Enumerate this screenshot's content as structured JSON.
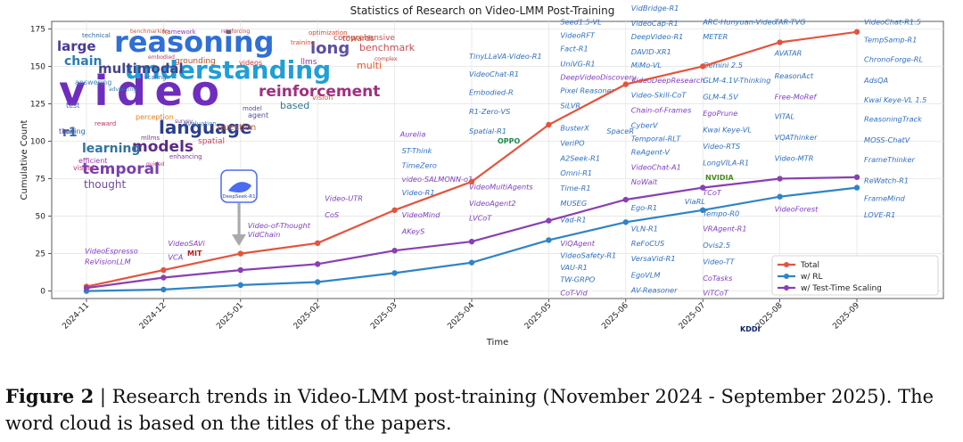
{
  "chart_data": {
    "type": "line",
    "title": "Statistics of Research on Video-LMM Post-Training",
    "xlabel": "Time",
    "ylabel": "Cumulative Count",
    "categories": [
      "2024-11",
      "2024-12",
      "2025-01",
      "2025-02",
      "2025-03",
      "2025-04",
      "2025-05",
      "2025-06",
      "2025-07",
      "2025-08",
      "2025-09"
    ],
    "ylim": [
      -5,
      180
    ],
    "yticks": [
      0,
      25,
      50,
      75,
      100,
      125,
      150,
      175
    ],
    "grid": true,
    "legend_position": "bottom-right",
    "series": [
      {
        "name": "Total",
        "color": "#e5533d",
        "values": [
          3,
          14,
          25,
          32,
          54,
          73,
          111,
          138,
          150,
          166,
          173
        ]
      },
      {
        "name": "w/ RL",
        "color": "#2f84c6",
        "values": [
          0,
          1,
          4,
          6,
          12,
          19,
          34,
          46,
          54,
          63,
          69
        ]
      },
      {
        "name": "w/ Test-Time Scaling",
        "color": "#8a3fb3",
        "values": [
          2,
          9,
          14,
          18,
          27,
          33,
          47,
          61,
          69,
          75,
          76
        ]
      }
    ],
    "annotation": "DeepSeek-R1",
    "word_cloud": [
      {
        "text": "video",
        "color": "#6f2dbd",
        "size": 46
      },
      {
        "text": "reasoning",
        "color": "#2f6fd6",
        "size": 32
      },
      {
        "text": "understanding",
        "color": "#1f9fd6",
        "size": 28
      },
      {
        "text": "language",
        "color": "#2c3e8f",
        "size": 20
      },
      {
        "text": "reinforcement",
        "color": "#a22e80",
        "size": 17
      },
      {
        "text": "models",
        "color": "#5b2a86",
        "size": 17
      },
      {
        "text": "temporal",
        "color": "#7a3fb0",
        "size": 17
      },
      {
        "text": "multimodal",
        "color": "#444488",
        "size": 15
      },
      {
        "text": "long",
        "color": "#5e4fa2",
        "size": 18
      },
      {
        "text": "large",
        "color": "#4a3a96",
        "size": 15
      },
      {
        "text": "learning",
        "color": "#3274a1",
        "size": 14
      },
      {
        "text": "chain",
        "color": "#2c7bb6",
        "size": 14
      },
      {
        "text": "thought",
        "color": "#6f4a9c",
        "size": 12
      },
      {
        "text": "benchmark",
        "color": "#c44e52",
        "size": 11
      },
      {
        "text": "comprehensive",
        "color": "#c44e52",
        "size": 9
      },
      {
        "text": "multi",
        "color": "#e55c30",
        "size": 11
      },
      {
        "text": "based",
        "color": "#2b7a8c",
        "size": 11
      },
      {
        "text": "question",
        "color": "#d06030",
        "size": 10
      },
      {
        "text": "towards",
        "color": "#c05030",
        "size": 9
      },
      {
        "text": "llms",
        "color": "#8a3fa0",
        "size": 9
      },
      {
        "text": "r1",
        "color": "#3a6fb0",
        "size": 14
      },
      {
        "text": "spatial",
        "color": "#c04060",
        "size": 9
      },
      {
        "text": "grounding",
        "color": "#b05030",
        "size": 9
      },
      {
        "text": "perception",
        "color": "#e08020",
        "size": 8
      },
      {
        "text": "efficient",
        "color": "#9a3ab0",
        "size": 8
      },
      {
        "text": "visual",
        "color": "#c0307a",
        "size": 8
      },
      {
        "text": "videos",
        "color": "#c04040",
        "size": 8
      },
      {
        "text": "agent",
        "color": "#5050a0",
        "size": 8
      },
      {
        "text": "evaluation",
        "color": "#3a8ab0",
        "size": 7
      },
      {
        "text": "answering",
        "color": "#3a8ab0",
        "size": 8
      },
      {
        "text": "tuning",
        "color": "#2a6a9a",
        "size": 8
      },
      {
        "text": "mllms",
        "color": "#7a3a90",
        "size": 7
      },
      {
        "text": "technical",
        "color": "#2a6a9a",
        "size": 7
      },
      {
        "text": "optimization",
        "color": "#d04a30",
        "size": 7
      },
      {
        "text": "training",
        "color": "#d04a30",
        "size": 7
      },
      {
        "text": "framework",
        "color": "#8a3ab0",
        "size": 7
      },
      {
        "text": "enhancing",
        "color": "#7a3a90",
        "size": 7
      },
      {
        "text": "scaling",
        "color": "#3a6ab0",
        "size": 7
      },
      {
        "text": "reward",
        "color": "#c0306a",
        "size": 7
      },
      {
        "text": "time",
        "color": "#5a3aa0",
        "size": 8
      },
      {
        "text": "test",
        "color": "#3a6ab0",
        "size": 8
      },
      {
        "text": "vision",
        "color": "#d05a30",
        "size": 8
      },
      {
        "text": "model",
        "color": "#5050a0",
        "size": 7
      },
      {
        "text": "guided",
        "color": "#b04080",
        "size": 6
      },
      {
        "text": "complex",
        "color": "#c04040",
        "size": 6
      },
      {
        "text": "survey",
        "color": "#7a3a90",
        "size": 6
      },
      {
        "text": "embodied",
        "color": "#c04060",
        "size": 6
      },
      {
        "text": "benchmarking",
        "color": "#c06030",
        "size": 6
      },
      {
        "text": "advancing",
        "color": "#3a7ab0",
        "size": 6
      },
      {
        "text": "reinforcing",
        "color": "#c04040",
        "size": 6
      }
    ],
    "paper_labels": [
      {
        "text": "VideoEspresso",
        "month": "2024-11",
        "y": 25,
        "color": "#8040c0"
      },
      {
        "text": "ReVisionLLM",
        "month": "2024-11",
        "y": 18,
        "color": "#8040c0"
      },
      {
        "text": "VideoSAVi",
        "month": "2024-12",
        "y": 30,
        "color": "#8040c0"
      },
      {
        "text": "VCA",
        "month": "2024-12",
        "y": 21,
        "color": "#8040c0"
      },
      {
        "text": "Video-of-Thought",
        "month": "2025-01",
        "y": 42,
        "color": "#8040c0"
      },
      {
        "text": "VidChain",
        "month": "2025-01",
        "y": 36,
        "color": "#8040c0"
      },
      {
        "text": "Video-UTR",
        "month": "2025-02",
        "y": 60,
        "color": "#8040c0"
      },
      {
        "text": "CoS",
        "month": "2025-02",
        "y": 49,
        "color": "#8040c0"
      },
      {
        "text": "Aurelia",
        "month": "2025-03",
        "y": 103,
        "color": "#8040c0"
      },
      {
        "text": "ST-Think",
        "month": "2025-03",
        "y": 92,
        "color": "#3070c0"
      },
      {
        "text": "TimeZero",
        "month": "2025-03",
        "y": 82,
        "color": "#3070c0"
      },
      {
        "text": "video-SALMONN-o1",
        "month": "2025-03",
        "y": 73,
        "color": "#8040c0"
      },
      {
        "text": "Video-R1",
        "month": "2025-03",
        "y": 64,
        "color": "#3070c0"
      },
      {
        "text": "VideoMind",
        "month": "2025-03",
        "y": 49,
        "color": "#8040c0"
      },
      {
        "text": "AKeyS",
        "month": "2025-03",
        "y": 38,
        "color": "#8040c0"
      },
      {
        "text": "TinyLLaVA-Video-R1",
        "month": "2025-04",
        "y": 155,
        "color": "#3070c0"
      },
      {
        "text": "VideoChat-R1",
        "month": "2025-04",
        "y": 143,
        "color": "#3070c0"
      },
      {
        "text": "Embodied-R",
        "month": "2025-04",
        "y": 131,
        "color": "#3070c0"
      },
      {
        "text": "R1-Zero-VS",
        "month": "2025-04",
        "y": 118,
        "color": "#3070c0"
      },
      {
        "text": "Spatial-R1",
        "month": "2025-04",
        "y": 105,
        "color": "#3070c0"
      },
      {
        "text": "VideoMultiAgents",
        "month": "2025-04",
        "y": 68,
        "color": "#8040c0"
      },
      {
        "text": "VideoAgent2",
        "month": "2025-04",
        "y": 57,
        "color": "#8040c0"
      },
      {
        "text": "LVCoT",
        "month": "2025-04",
        "y": 47,
        "color": "#8040c0"
      },
      {
        "text": "Seed1.5-VL",
        "month": "2025-05",
        "y": 178,
        "color": "#3070c0"
      },
      {
        "text": "VideoRFT",
        "month": "2025-05",
        "y": 169,
        "color": "#3070c0"
      },
      {
        "text": "Fact-R1",
        "month": "2025-05",
        "y": 160,
        "color": "#3070c0"
      },
      {
        "text": "UniVG-R1",
        "month": "2025-05",
        "y": 150,
        "color": "#3070c0"
      },
      {
        "text": "DeepVideoDiscovery",
        "month": "2025-05",
        "y": 141,
        "color": "#8040c0"
      },
      {
        "text": "Pixel Reasoner",
        "month": "2025-05",
        "y": 132,
        "color": "#3070c0"
      },
      {
        "text": "SiLVR",
        "month": "2025-05",
        "y": 122,
        "color": "#3070c0"
      },
      {
        "text": "BusterX",
        "month": "2025-05",
        "y": 107,
        "color": "#3070c0"
      },
      {
        "text": "VeriPO",
        "month": "2025-05",
        "y": 97,
        "color": "#3070c0"
      },
      {
        "text": "SpaceR",
        "month": "2025-05",
        "y": 105,
        "color": "#3070c0"
      },
      {
        "text": "A2Seek-R1",
        "month": "2025-05",
        "y": 87,
        "color": "#3070c0"
      },
      {
        "text": "Omni-R1",
        "month": "2025-05",
        "y": 77,
        "color": "#3070c0"
      },
      {
        "text": "Time-R1",
        "month": "2025-05",
        "y": 67,
        "color": "#3070c0"
      },
      {
        "text": "MUSEG",
        "month": "2025-05",
        "y": 57,
        "color": "#3070c0"
      },
      {
        "text": "Vad-R1",
        "month": "2025-05",
        "y": 46,
        "color": "#3070c0"
      },
      {
        "text": "ViQAgent",
        "month": "2025-05",
        "y": 30,
        "color": "#8040c0"
      },
      {
        "text": "VideoSafety-R1",
        "month": "2025-05",
        "y": 22,
        "color": "#3070c0"
      },
      {
        "text": "VAU-R1",
        "month": "2025-05",
        "y": 14,
        "color": "#3070c0"
      },
      {
        "text": "TW-GRPO",
        "month": "2025-05",
        "y": 6,
        "color": "#3070c0"
      },
      {
        "text": "CoT-Vid",
        "month": "2025-05",
        "y": -3,
        "color": "#8040c0"
      },
      {
        "text": "VidBridge-R1",
        "month": "2025-06",
        "y": 187,
        "color": "#3070c0"
      },
      {
        "text": "VideoCap-R1",
        "month": "2025-06",
        "y": 177,
        "color": "#3070c0"
      },
      {
        "text": "DeepVideo-R1",
        "month": "2025-06",
        "y": 168,
        "color": "#3070c0"
      },
      {
        "text": "DAVID-XR1",
        "month": "2025-06",
        "y": 158,
        "color": "#3070c0"
      },
      {
        "text": "MiMo-VL",
        "month": "2025-06",
        "y": 149,
        "color": "#3070c0"
      },
      {
        "text": "VideoDeepResearch",
        "month": "2025-06",
        "y": 139,
        "color": "#8040c0"
      },
      {
        "text": "Video-Skill-CoT",
        "month": "2025-06",
        "y": 129,
        "color": "#3070c0"
      },
      {
        "text": "Chain-of-Frames",
        "month": "2025-06",
        "y": 119,
        "color": "#8040c0"
      },
      {
        "text": "CyberV",
        "month": "2025-06",
        "y": 109,
        "color": "#3070c0"
      },
      {
        "text": "Temporal-RLT",
        "month": "2025-06",
        "y": 100,
        "color": "#3070c0"
      },
      {
        "text": "ReAgent-V",
        "month": "2025-06",
        "y": 91,
        "color": "#3070c0"
      },
      {
        "text": "VideoChat-A1",
        "month": "2025-06",
        "y": 81,
        "color": "#8040c0"
      },
      {
        "text": "NoWait",
        "month": "2025-06",
        "y": 71,
        "color": "#8040c0"
      },
      {
        "text": "ViaRL",
        "month": "2025-06",
        "y": 58,
        "color": "#3070c0"
      },
      {
        "text": "Ego-R1",
        "month": "2025-06",
        "y": 54,
        "color": "#3070c0"
      },
      {
        "text": "VLN-R1",
        "month": "2025-06",
        "y": 40,
        "color": "#3070c0"
      },
      {
        "text": "ReFoCUS",
        "month": "2025-06",
        "y": 30,
        "color": "#3070c0"
      },
      {
        "text": "VersaVid-R1",
        "month": "2025-06",
        "y": 20,
        "color": "#3070c0"
      },
      {
        "text": "EgoVLM",
        "month": "2025-06",
        "y": 9,
        "color": "#3070c0"
      },
      {
        "text": "AV-Reasoner",
        "month": "2025-06",
        "y": -1,
        "color": "#3070c0"
      },
      {
        "text": "ARC-Hunyuan-Video",
        "month": "2025-07",
        "y": 178,
        "color": "#3070c0"
      },
      {
        "text": "METER",
        "month": "2025-07",
        "y": 168,
        "color": "#3070c0"
      },
      {
        "text": "Gemini 2.5",
        "month": "2025-07",
        "y": 149,
        "color": "#3070c0"
      },
      {
        "text": "GLM-4.1V-Thinking",
        "month": "2025-07",
        "y": 139,
        "color": "#3070c0"
      },
      {
        "text": "GLM-4.5V",
        "month": "2025-07",
        "y": 128,
        "color": "#3070c0"
      },
      {
        "text": "EgoPrune",
        "month": "2025-07",
        "y": 117,
        "color": "#8040c0"
      },
      {
        "text": "Kwai Keye-VL",
        "month": "2025-07",
        "y": 106,
        "color": "#3070c0"
      },
      {
        "text": "Video-RTS",
        "month": "2025-07",
        "y": 95,
        "color": "#3070c0"
      },
      {
        "text": "LongVILA-R1",
        "month": "2025-07",
        "y": 84,
        "color": "#3070c0"
      },
      {
        "text": "TCoT",
        "month": "2025-07",
        "y": 64,
        "color": "#8040c0"
      },
      {
        "text": "Tempo-R0",
        "month": "2025-07",
        "y": 50,
        "color": "#3070c0"
      },
      {
        "text": "VRAgent-R1",
        "month": "2025-07",
        "y": 40,
        "color": "#8040c0"
      },
      {
        "text": "Ovis2.5",
        "month": "2025-07",
        "y": 29,
        "color": "#3070c0"
      },
      {
        "text": "Video-TT",
        "month": "2025-07",
        "y": 18,
        "color": "#3070c0"
      },
      {
        "text": "CoTasks",
        "month": "2025-07",
        "y": 7,
        "color": "#8040c0"
      },
      {
        "text": "ViTCoT",
        "month": "2025-07",
        "y": -3,
        "color": "#8040c0"
      },
      {
        "text": "TAR-TVG",
        "month": "2025-08",
        "y": 178,
        "color": "#3070c0"
      },
      {
        "text": "AVATAR",
        "month": "2025-08",
        "y": 157,
        "color": "#3070c0"
      },
      {
        "text": "ReasonAct",
        "month": "2025-08",
        "y": 142,
        "color": "#3070c0"
      },
      {
        "text": "Free-MoRef",
        "month": "2025-08",
        "y": 128,
        "color": "#8040c0"
      },
      {
        "text": "VITAL",
        "month": "2025-08",
        "y": 115,
        "color": "#3070c0"
      },
      {
        "text": "VQAThinker",
        "month": "2025-08",
        "y": 101,
        "color": "#3070c0"
      },
      {
        "text": "Video-MTR",
        "month": "2025-08",
        "y": 87,
        "color": "#3070c0"
      },
      {
        "text": "VideoForest",
        "month": "2025-08",
        "y": 53,
        "color": "#8040c0"
      },
      {
        "text": "VideoChat-R1.5",
        "month": "2025-09",
        "y": 178,
        "color": "#3070c0"
      },
      {
        "text": "TempSamp-R1",
        "month": "2025-09",
        "y": 166,
        "color": "#3070c0"
      },
      {
        "text": "ChronoForge-RL",
        "month": "2025-09",
        "y": 153,
        "color": "#3070c0"
      },
      {
        "text": "AdsQA",
        "month": "2025-09",
        "y": 139,
        "color": "#3070c0"
      },
      {
        "text": "Kwai Keye-VL 1.5",
        "month": "2025-09",
        "y": 126,
        "color": "#3070c0"
      },
      {
        "text": "ReasoningTrack",
        "month": "2025-09",
        "y": 113,
        "color": "#3070c0"
      },
      {
        "text": "MOSS-ChatV",
        "month": "2025-09",
        "y": 99,
        "color": "#3070c0"
      },
      {
        "text": "FrameThinker",
        "month": "2025-09",
        "y": 86,
        "color": "#3070c0"
      },
      {
        "text": "ReWatch-R1",
        "month": "2025-09",
        "y": 72,
        "color": "#3070c0"
      },
      {
        "text": "FrameMind",
        "month": "2025-09",
        "y": 60,
        "color": "#3070c0"
      },
      {
        "text": "LOVE-R1",
        "month": "2025-09",
        "y": 49,
        "color": "#3070c0"
      }
    ],
    "logo_labels": [
      "MIT",
      "OPPO",
      "NVIDIA",
      "KDDI"
    ]
  },
  "caption": {
    "label": "Figure 2",
    "text": " | Research trends in Video-LMM post-training (November 2024 - September 2025). The word cloud is based on the titles of the papers."
  }
}
